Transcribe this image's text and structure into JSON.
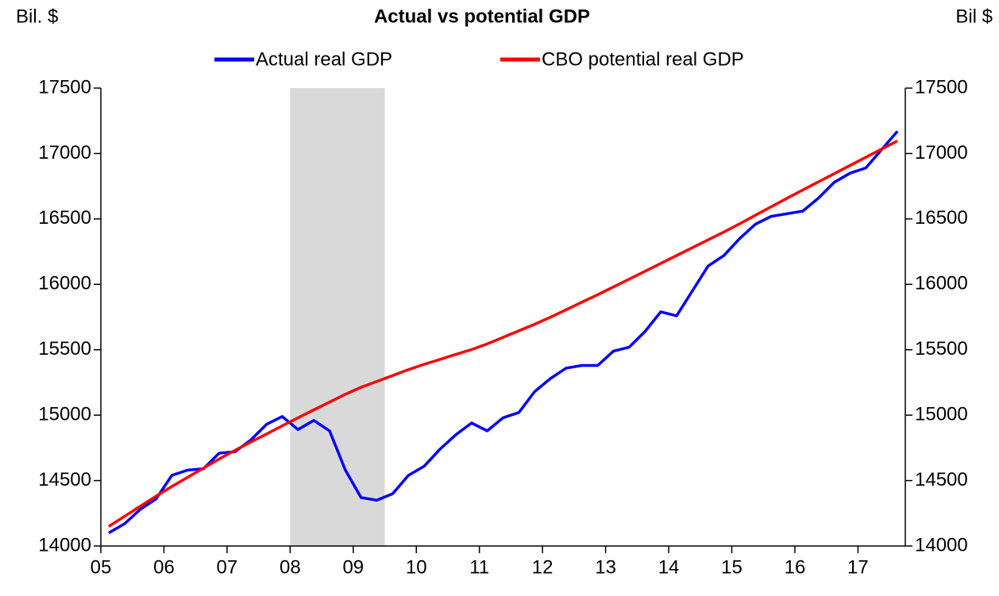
{
  "chart_data": {
    "type": "line",
    "title": "Actual vs potential GDP",
    "ylabel": "Bil. $",
    "y2label": "Bil $",
    "x": [
      2005.125,
      2005.375,
      2005.625,
      2005.875,
      2006.125,
      2006.375,
      2006.625,
      2006.875,
      2007.125,
      2007.375,
      2007.625,
      2007.875,
      2008.125,
      2008.375,
      2008.625,
      2008.875,
      2009.125,
      2009.375,
      2009.625,
      2009.875,
      2010.125,
      2010.375,
      2010.625,
      2010.875,
      2011.125,
      2011.375,
      2011.625,
      2011.875,
      2012.125,
      2012.375,
      2012.625,
      2012.875,
      2013.125,
      2013.375,
      2013.625,
      2013.875,
      2014.125,
      2014.375,
      2014.625,
      2014.875,
      2015.125,
      2015.375,
      2015.625,
      2015.875,
      2016.125,
      2016.375,
      2016.625,
      2016.875,
      2017.125,
      2017.375,
      2017.625
    ],
    "series": [
      {
        "name": "Actual real GDP",
        "color": "#0000ff",
        "values": [
          14100,
          14170,
          14280,
          14360,
          14540,
          14580,
          14590,
          14710,
          14720,
          14810,
          14930,
          14990,
          14890,
          14960,
          14880,
          14580,
          14370,
          14350,
          14400,
          14540,
          14610,
          14740,
          14850,
          14940,
          14880,
          14980,
          15020,
          15180,
          15280,
          15360,
          15380,
          15380,
          15490,
          15520,
          15640,
          15790,
          15760,
          15950,
          16140,
          16220,
          16350,
          16460,
          16520,
          16540,
          16560,
          16660,
          16780,
          16850,
          16890,
          17030,
          17170
        ]
      },
      {
        "name": "CBO potential real GDP",
        "color": "#ff0000",
        "values": [
          14149,
          14226,
          14304,
          14381,
          14455,
          14525,
          14595,
          14665,
          14731,
          14794,
          14856,
          14919,
          14980,
          15040,
          15100,
          15160,
          15213,
          15258,
          15303,
          15348,
          15389,
          15426,
          15464,
          15501,
          15545,
          15595,
          15645,
          15695,
          15749,
          15806,
          15864,
          15921,
          15980,
          16040,
          16100,
          16160,
          16220,
          16280,
          16340,
          16400,
          16463,
          16528,
          16593,
          16658,
          16721,
          16784,
          16846,
          16909,
          16971,
          17034,
          17096
        ]
      }
    ],
    "shade": [
      2008,
      2009.5
    ],
    "shade_color": "#d9d9d9",
    "xlim": [
      2005,
      2017.75
    ],
    "xticks": [
      {
        "value": 2005,
        "label": "05"
      },
      {
        "value": 2006,
        "label": "06"
      },
      {
        "value": 2007,
        "label": "07"
      },
      {
        "value": 2008,
        "label": "08"
      },
      {
        "value": 2009,
        "label": "09"
      },
      {
        "value": 2010,
        "label": "10"
      },
      {
        "value": 2011,
        "label": "11"
      },
      {
        "value": 2012,
        "label": "12"
      },
      {
        "value": 2013,
        "label": "13"
      },
      {
        "value": 2014,
        "label": "14"
      },
      {
        "value": 2015,
        "label": "15"
      },
      {
        "value": 2016,
        "label": "16"
      },
      {
        "value": 2017,
        "label": "17"
      }
    ],
    "ylim": [
      14000,
      17500
    ],
    "yticks": [
      14000,
      14500,
      15000,
      15500,
      16000,
      16500,
      17000,
      17500
    ],
    "y2lim": [
      14000,
      17500
    ],
    "y2ticks": [
      14000,
      14500,
      15000,
      15500,
      16000,
      16500,
      17000,
      17500
    ],
    "legend": "top",
    "grid": false
  }
}
